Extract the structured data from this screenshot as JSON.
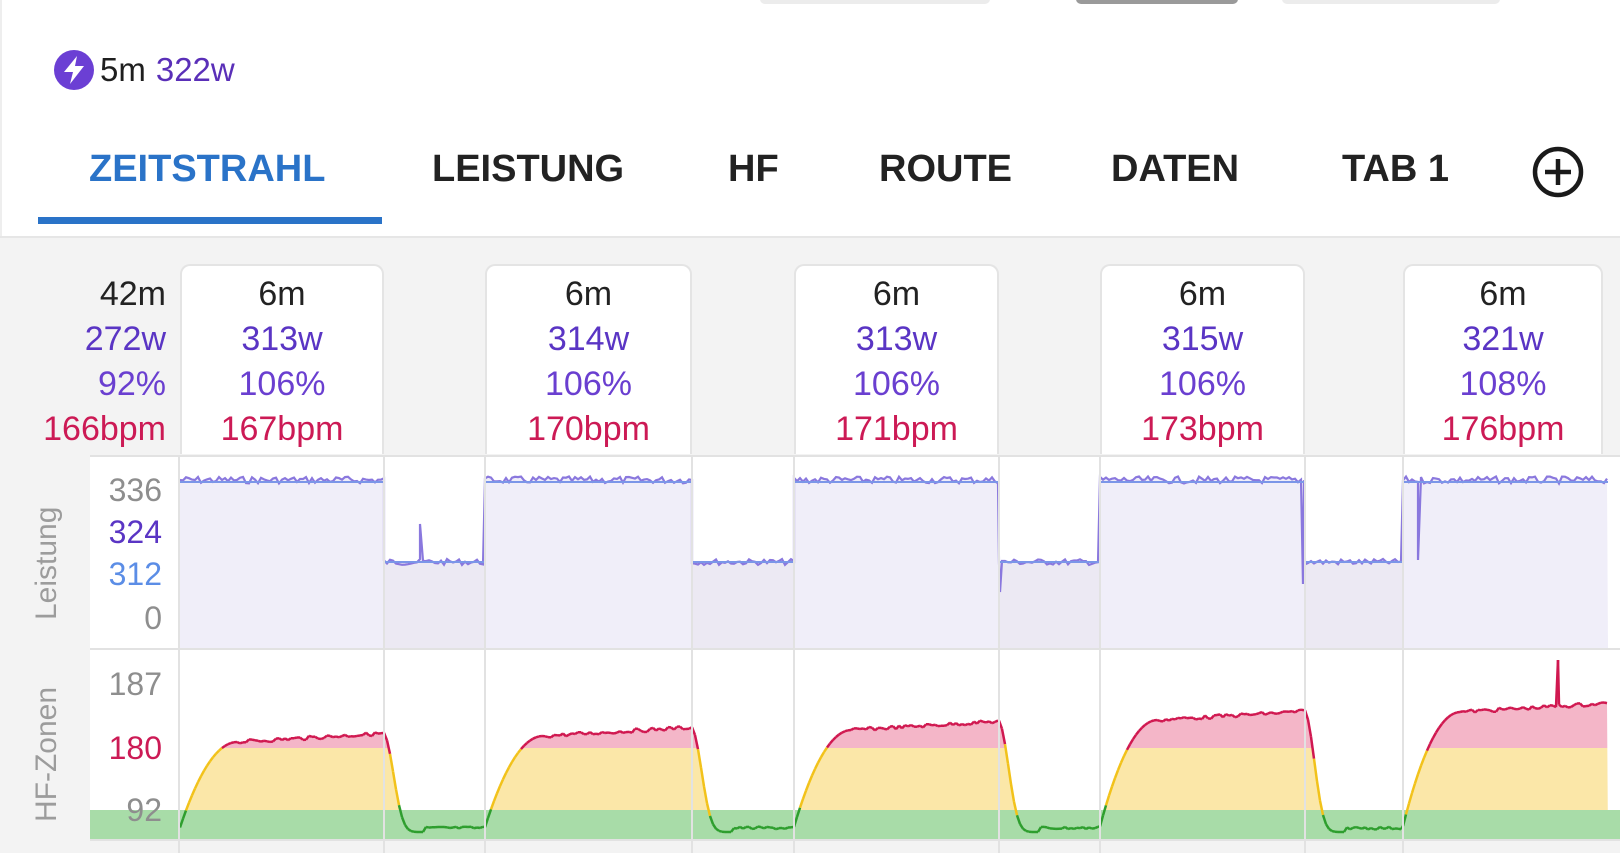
{
  "peak": {
    "duration": "5m",
    "value": "322w",
    "icon": "lightning-bolt-icon",
    "color": "#6b3fd4"
  },
  "tabs": [
    {
      "label": "ZEITSTRAHL",
      "active": true
    },
    {
      "label": "LEISTUNG",
      "active": false
    },
    {
      "label": "HF",
      "active": false
    },
    {
      "label": "ROUTE",
      "active": false
    },
    {
      "label": "DATEN",
      "active": false
    },
    {
      "label": "TAB 1",
      "active": false
    }
  ],
  "add_tab_icon": "plus-circle-icon",
  "summary": {
    "duration": "42m",
    "power": "272w",
    "percent": "92%",
    "hr": "166bpm"
  },
  "intervals": [
    {
      "duration": "6m",
      "power": "313w",
      "percent": "106%",
      "hr": "167bpm"
    },
    {
      "duration": "6m",
      "power": "314w",
      "percent": "106%",
      "hr": "170bpm"
    },
    {
      "duration": "6m",
      "power": "313w",
      "percent": "106%",
      "hr": "171bpm"
    },
    {
      "duration": "6m",
      "power": "315w",
      "percent": "106%",
      "hr": "173bpm"
    },
    {
      "duration": "6m",
      "power": "321w",
      "percent": "108%",
      "hr": "176bpm"
    }
  ],
  "power_chart": {
    "axis_title": "Leistung",
    "labels": {
      "max": "336",
      "avg_work": "324",
      "avg_ride": "312",
      "min": "0"
    },
    "colors": {
      "line": "#8a78de",
      "fill": "#f0eef9",
      "avg_line": "#7b96e8"
    }
  },
  "hr_chart": {
    "axis_title": "HF-Zonen",
    "labels": {
      "max": "187",
      "threshold": "180",
      "low": "92"
    },
    "colors": {
      "green": "#2e9e2e",
      "yellow": "#f2c21a",
      "red": "#d01850",
      "green_fill": "#a8dca8",
      "yellow_fill": "#fbe7a8",
      "red_fill": "#f4b6c8"
    }
  }
}
